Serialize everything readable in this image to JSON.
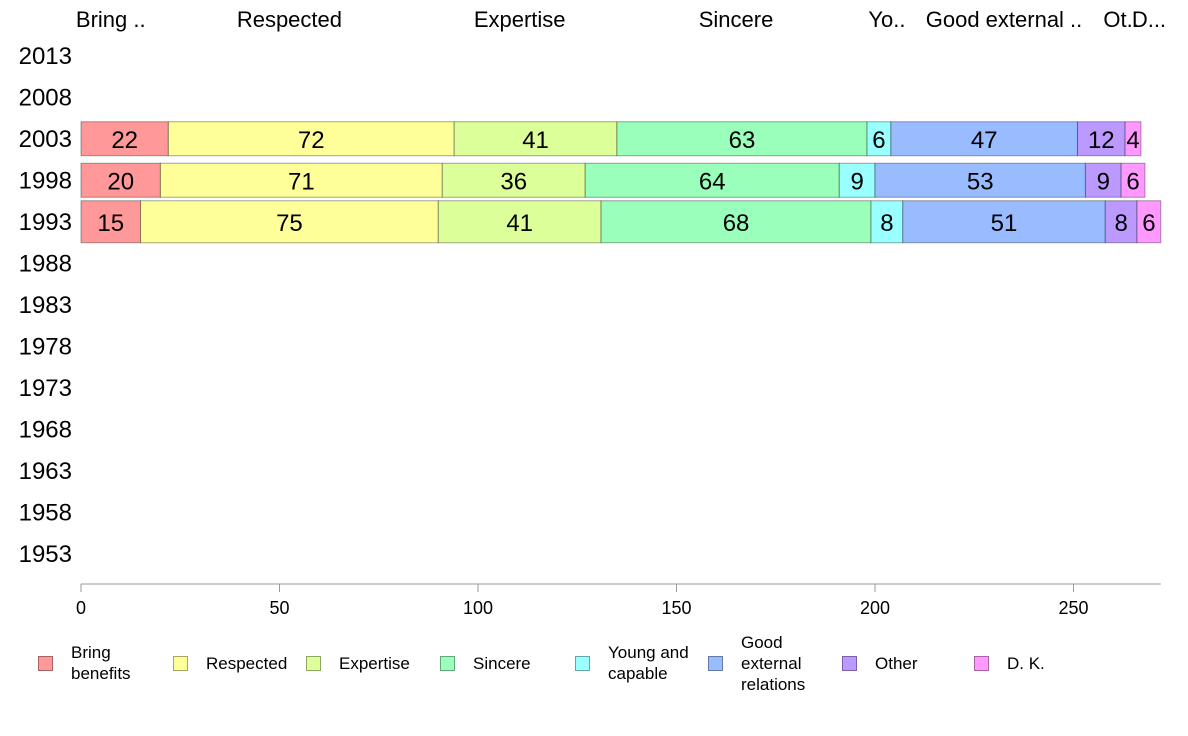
{
  "chart_data": {
    "type": "bar",
    "orientation": "horizontal",
    "stacked": true,
    "title": "",
    "xlabel": "",
    "ylabel": "",
    "xlim": [
      0,
      272
    ],
    "xticks": [
      0,
      50,
      100,
      150,
      200,
      250
    ],
    "categories": [
      "2013",
      "2008",
      "2003",
      "1998",
      "1993",
      "1988",
      "1983",
      "1978",
      "1973",
      "1968",
      "1963",
      "1958",
      "1953"
    ],
    "series": [
      {
        "name": "Bring\nbenefits",
        "column_header": "Bring ..",
        "color": "#ff9999",
        "values": [
          null,
          null,
          22,
          20,
          15,
          null,
          null,
          null,
          null,
          null,
          null,
          null,
          null
        ]
      },
      {
        "name": "Respected",
        "column_header": "Respected",
        "color": "#ffff99",
        "values": [
          null,
          null,
          72,
          71,
          75,
          null,
          null,
          null,
          null,
          null,
          null,
          null,
          null
        ]
      },
      {
        "name": "Expertise",
        "column_header": "Expertise",
        "color": "#ddff99",
        "values": [
          null,
          null,
          41,
          36,
          41,
          null,
          null,
          null,
          null,
          null,
          null,
          null,
          null
        ]
      },
      {
        "name": "Sincere",
        "column_header": "Sincere",
        "color": "#99ffbb",
        "values": [
          null,
          null,
          63,
          64,
          68,
          null,
          null,
          null,
          null,
          null,
          null,
          null,
          null
        ]
      },
      {
        "name": "Young and\ncapable",
        "column_header": "Yo..",
        "color": "#99ffff",
        "values": [
          null,
          null,
          6,
          9,
          8,
          null,
          null,
          null,
          null,
          null,
          null,
          null,
          null
        ]
      },
      {
        "name": "Good\nexternal\nrelations",
        "column_header": "Good external ..",
        "color": "#99bbff",
        "values": [
          null,
          null,
          47,
          53,
          51,
          null,
          null,
          null,
          null,
          null,
          null,
          null,
          null
        ]
      },
      {
        "name": "Other",
        "column_header": "Ot..",
        "color": "#bb99ff",
        "values": [
          null,
          null,
          12,
          9,
          8,
          null,
          null,
          null,
          null,
          null,
          null,
          null,
          null
        ]
      },
      {
        "name": "D. K.",
        "column_header": "D...",
        "color": "#ff99ff",
        "values": [
          null,
          null,
          4,
          6,
          6,
          null,
          null,
          null,
          null,
          null,
          null,
          null,
          null
        ]
      }
    ],
    "legend_position": "bottom",
    "grid": false
  }
}
